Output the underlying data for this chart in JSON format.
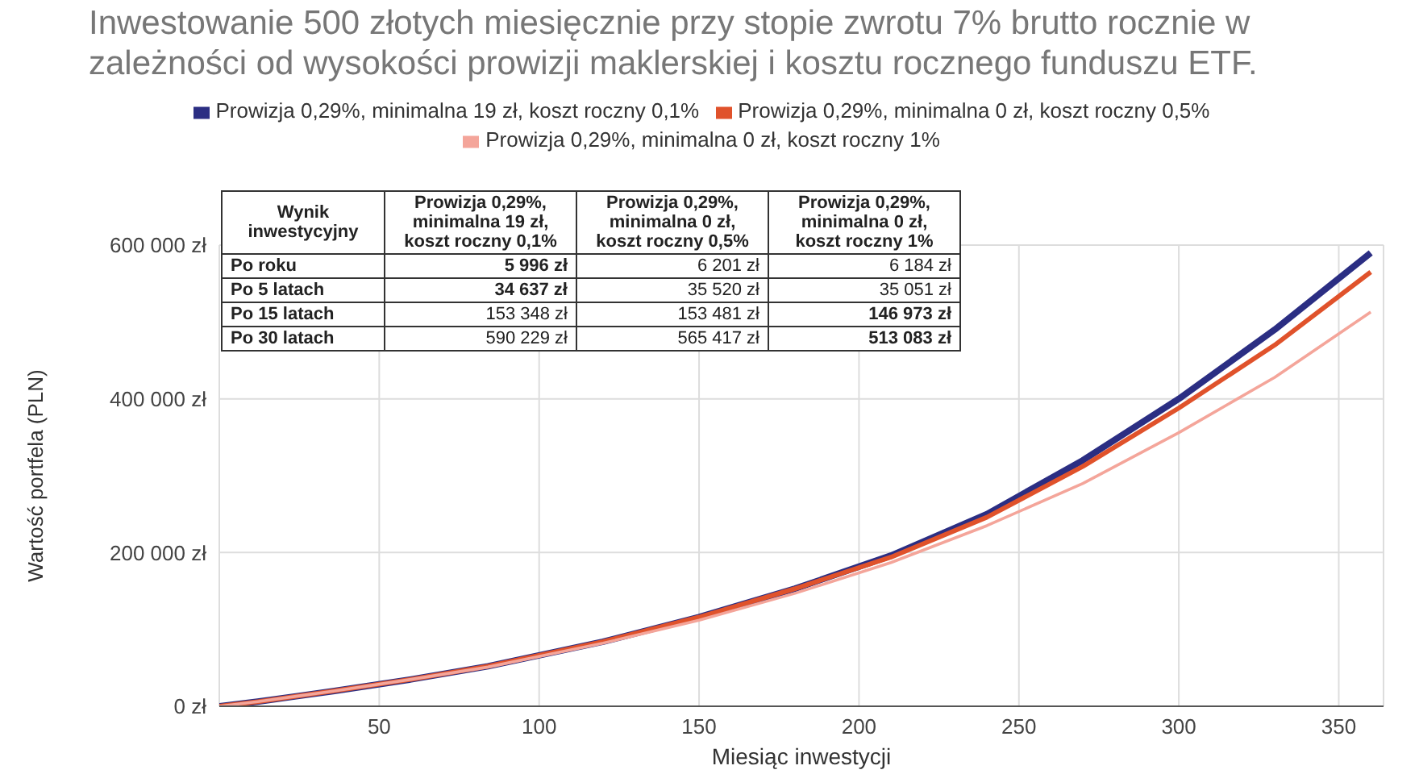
{
  "chart_data": {
    "type": "line",
    "title": "Inwestowanie 500 złotych miesięcznie przy stopie zwrotu 7% brutto rocznie w zależności od wysokości prowizji maklerskiej i kosztu rocznego funduszu ETF.",
    "xlabel": "Miesiąc inwestycji",
    "ylabel": "Wartość portfela (PLN)",
    "x": [
      0,
      12,
      24,
      36,
      60,
      84,
      120,
      150,
      180,
      210,
      240,
      270,
      300,
      330,
      360
    ],
    "series": [
      {
        "name": "Prowizja 0,29%, minimalna 19 zł, koszt roczny 0,1%",
        "color": "#2b2e83",
        "values": [
          0,
          6000,
          13000,
          20000,
          35000,
          52000,
          84000,
          116000,
          153000,
          196000,
          250000,
          320000,
          400000,
          490000,
          590000
        ]
      },
      {
        "name": "Prowizja 0,29%, minimalna 0 zł, koszt roczny 0,5%",
        "color": "#e0522b",
        "values": [
          0,
          6000,
          13000,
          20000,
          35000,
          52000,
          84000,
          116000,
          153000,
          194000,
          246000,
          312000,
          388000,
          470000,
          565000
        ]
      },
      {
        "name": "Prowizja 0,29%, minimalna 0 zł, koszt roczny 1%",
        "color": "#f4a59a",
        "values": [
          0,
          6000,
          13000,
          20000,
          35000,
          51000,
          82000,
          112000,
          147000,
          187000,
          235000,
          290000,
          356000,
          428000,
          513000
        ]
      }
    ],
    "annotations": [
      "Wynik inwestycyjny",
      "Prowizja 0,29%, minimalna 19 zł, koszt roczny 0,1%",
      "Prowizja 0,29%, minimalna 0 zł, koszt roczny 0,5%",
      "Prowizja 0,29%, minimalna 0 zł, koszt roczny 1%",
      "Po roku",
      "5 996 zł",
      "6 201 zł",
      "6 184 zł",
      "Po 5 latach",
      "34 637 zł",
      "35 520 zł",
      "35 051 zł",
      "Po 15 latach",
      "153 348 zł",
      "153 481 zł",
      "146 973 zł",
      "Po 30 latach",
      "590 229 zł",
      "565 417 zł",
      "513 083 zł"
    ],
    "xlim": [
      0,
      364
    ],
    "xticks": [
      50,
      100,
      150,
      200,
      250,
      300,
      350
    ],
    "ylim": [
      0,
      600000
    ],
    "yticks": [
      {
        "value": 0,
        "label": "0 zł"
      },
      {
        "value": 200000,
        "label": "200 000 zł"
      },
      {
        "value": 400000,
        "label": "400 000 zł"
      },
      {
        "value": 600000,
        "label": "600 000 zł"
      }
    ],
    "grid": true,
    "legend": "top",
    "marker": "none",
    "line_style": "solid"
  }
}
